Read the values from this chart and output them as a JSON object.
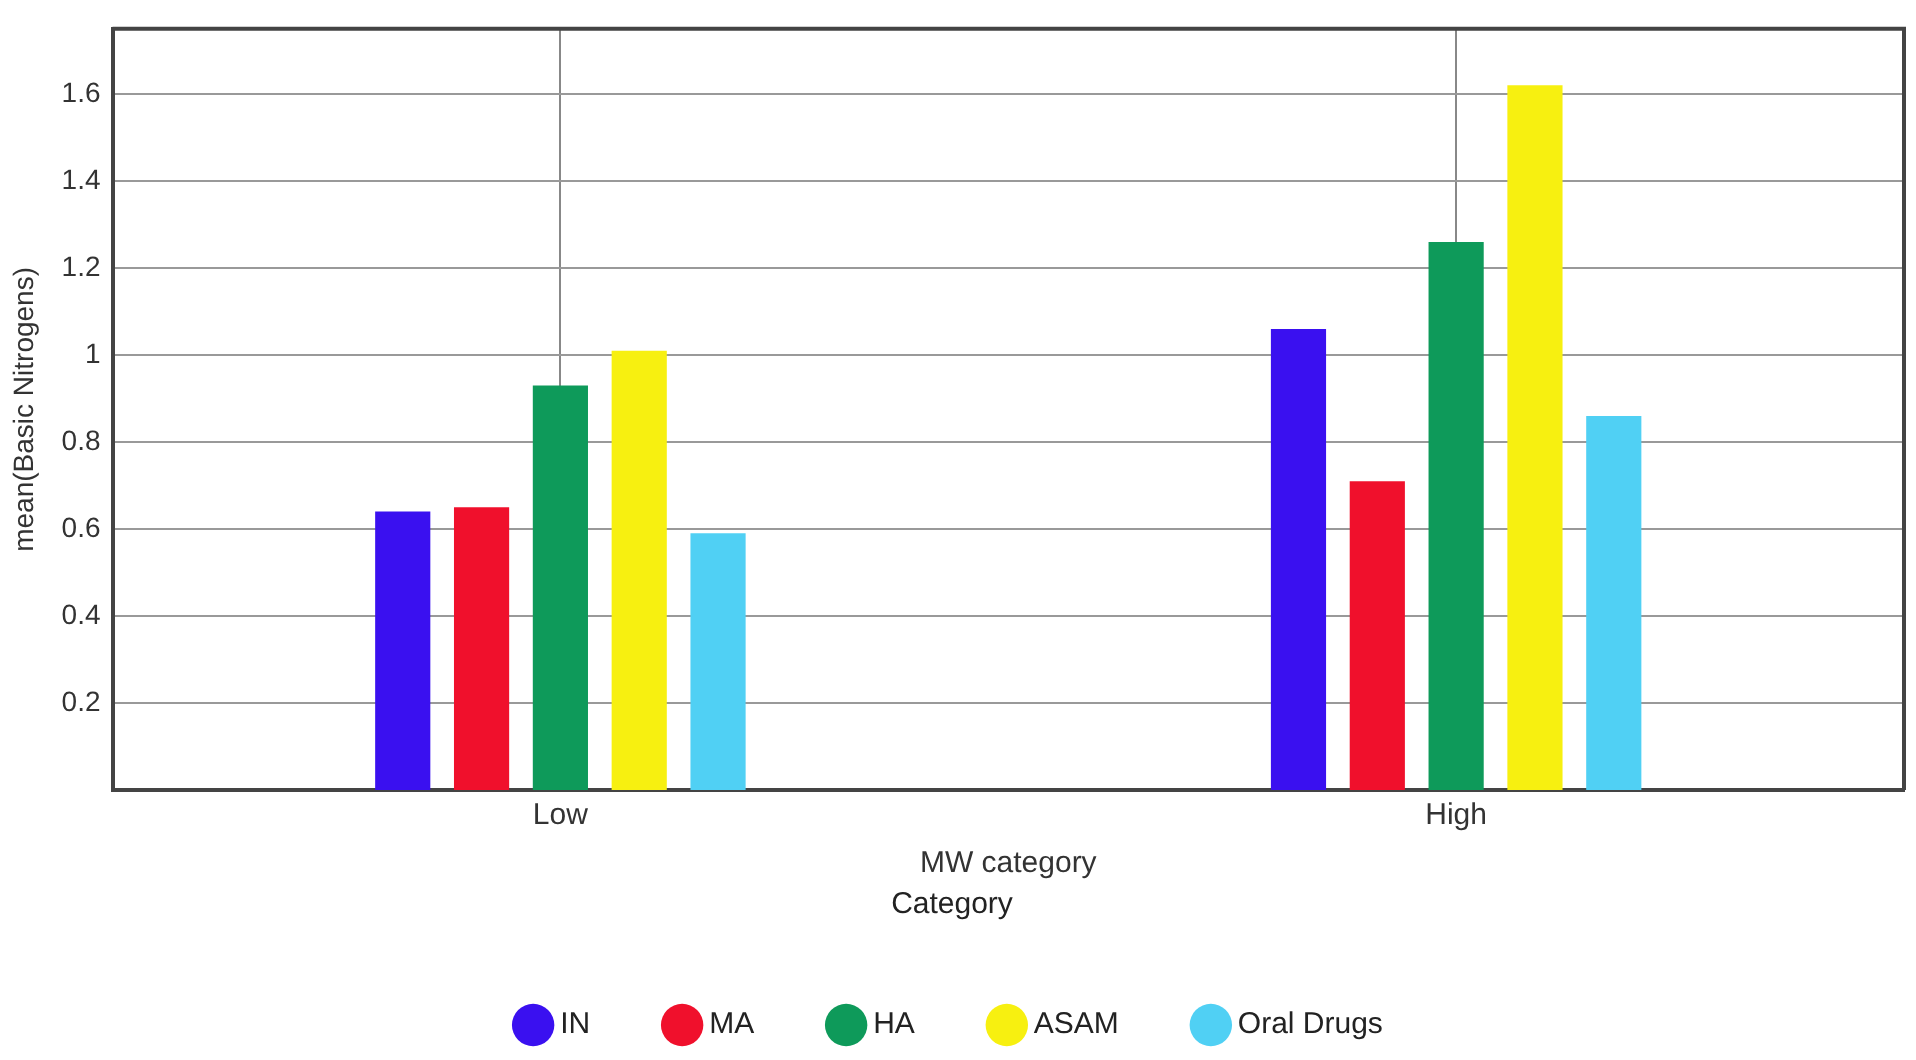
{
  "chart_data": {
    "type": "bar",
    "xlabel": "MW category",
    "ylabel": "mean(Basic Nitrogens)",
    "legend_title": "Category",
    "categories": [
      "Low",
      "High"
    ],
    "series": [
      {
        "name": "IN",
        "color": "#3a10f0",
        "values": [
          0.64,
          1.06
        ]
      },
      {
        "name": "MA",
        "color": "#f0102c",
        "values": [
          0.65,
          0.71
        ]
      },
      {
        "name": "HA",
        "color": "#0e9a5a",
        "values": [
          0.93,
          1.26
        ]
      },
      {
        "name": "ASAM",
        "color": "#f7f010",
        "values": [
          1.01,
          1.62
        ]
      },
      {
        "name": "Oral Drugs",
        "color": "#50d0f4",
        "values": [
          0.59,
          0.86
        ]
      }
    ],
    "ylim": [
      0,
      1.75
    ],
    "yticks": [
      0.2,
      0.4,
      0.6,
      0.8,
      1,
      1.2,
      1.4,
      1.6
    ],
    "grid": true,
    "legend": "bottom"
  }
}
